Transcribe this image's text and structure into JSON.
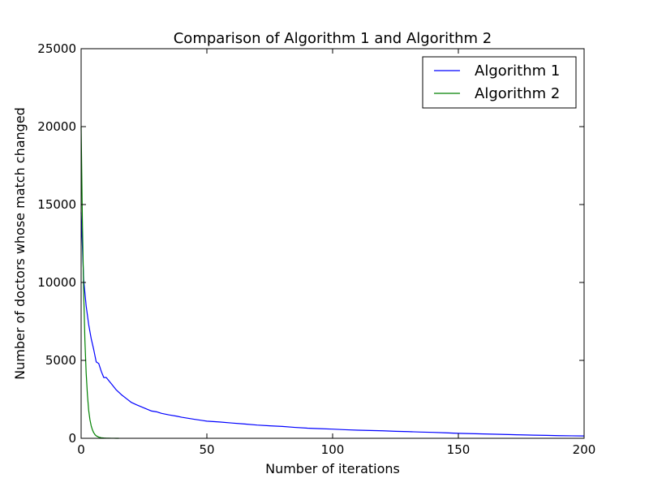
{
  "chart_data": {
    "type": "line",
    "title": "Comparison of Algorithm 1 and Algorithm 2",
    "xlabel": "Number of iterations",
    "ylabel": "Number of doctors whose match changed",
    "xlim": [
      0,
      200
    ],
    "ylim": [
      0,
      25000
    ],
    "x_ticks": [
      0,
      50,
      100,
      150,
      200
    ],
    "y_ticks": [
      0,
      5000,
      10000,
      15000,
      20000,
      25000
    ],
    "grid": false,
    "legend_position": "top-right",
    "series": [
      {
        "name": "Algorithm 1",
        "color": "#0000ff",
        "x": [
          0,
          1,
          2,
          3,
          4,
          5,
          6,
          7,
          8,
          9,
          10,
          12,
          14,
          16,
          18,
          20,
          22,
          25,
          28,
          30,
          32,
          35,
          38,
          40,
          42,
          45,
          48,
          50,
          55,
          60,
          65,
          70,
          75,
          80,
          85,
          90,
          95,
          100,
          105,
          110,
          115,
          120,
          125,
          130,
          135,
          140,
          145,
          150,
          155,
          160,
          165,
          170,
          175,
          180,
          185,
          190,
          195,
          200
        ],
        "values": [
          14500,
          10200,
          8500,
          7300,
          6400,
          5700,
          4900,
          4800,
          4300,
          3900,
          3900,
          3500,
          3100,
          2800,
          2550,
          2300,
          2150,
          1950,
          1750,
          1700,
          1600,
          1500,
          1420,
          1350,
          1300,
          1220,
          1150,
          1100,
          1050,
          980,
          920,
          850,
          800,
          760,
          700,
          650,
          620,
          590,
          550,
          520,
          500,
          480,
          450,
          430,
          400,
          380,
          350,
          320,
          300,
          280,
          260,
          240,
          220,
          200,
          190,
          170,
          160,
          150
        ]
      },
      {
        "name": "Algorithm 2",
        "color": "#008000",
        "x": [
          0,
          0.5,
          1,
          1.5,
          2,
          2.5,
          3,
          3.5,
          4,
          4.5,
          5,
          5.5,
          6,
          7,
          8,
          9,
          10,
          11,
          12,
          13,
          14,
          15
        ],
        "values": [
          20000,
          14000,
          9500,
          6300,
          4200,
          2800,
          1800,
          1200,
          800,
          540,
          360,
          240,
          160,
          75,
          35,
          18,
          9,
          5,
          3,
          2,
          1,
          0
        ]
      }
    ]
  }
}
